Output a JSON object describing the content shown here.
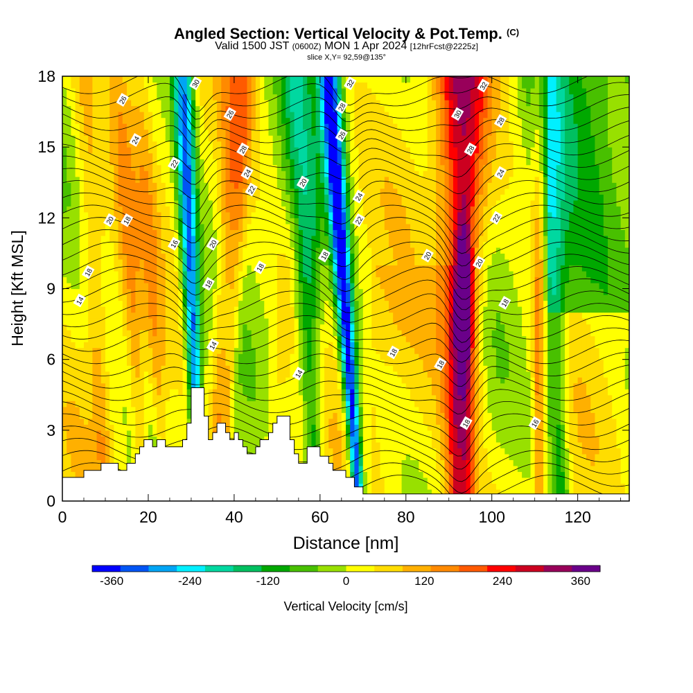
{
  "header": {
    "title_main": "Angled Section: Vertical Velocity & Pot.Temp.",
    "title_copyright": "(C)",
    "valid_a": "Valid 1500 JST",
    "valid_b": "(0600Z)",
    "valid_c": "MON 1 Apr 2024",
    "valid_d": "[12hrFcst@2225z]",
    "slice": "slice X,Y= 92,59@135°"
  },
  "chart_data": {
    "type": "heatmap",
    "title": "Angled Section: Vertical Velocity & Pot.Temp.",
    "xlabel": "Distance [nm]",
    "ylabel": "Height [Kft MSL]",
    "xlim": [
      0,
      132
    ],
    "ylim": [
      0,
      18
    ],
    "x_ticks": [
      0,
      20,
      40,
      60,
      80,
      100,
      120
    ],
    "y_ticks": [
      0,
      3,
      6,
      9,
      12,
      15,
      18
    ],
    "colorbar": {
      "label": "Vertical Velocity [cm/s]",
      "range": [
        -390,
        390
      ],
      "step": 60,
      "tick_values": [
        -360,
        -240,
        -120,
        0,
        120,
        240,
        360
      ],
      "colors": [
        "#0000ff",
        "#0055f5",
        "#00a5f5",
        "#00f0ff",
        "#00d8a0",
        "#00c060",
        "#00a800",
        "#48c000",
        "#98e000",
        "#ffff00",
        "#ffdd00",
        "#ffb000",
        "#ff8a00",
        "#ff5a00",
        "#ff0000",
        "#cc0020",
        "#98005a",
        "#6a008a"
      ]
    },
    "updraft_bands": [
      {
        "x_bottom": 10,
        "x_top": 5,
        "w": 1.6,
        "intensity": 0.16
      },
      {
        "x_bottom": 19,
        "x_top": 13,
        "w": 1.4,
        "intensity": 0.17
      },
      {
        "x_bottom": 24,
        "x_top": 18,
        "w": 1.3,
        "intensity": 0.14
      },
      {
        "x_bottom": 35,
        "x_top": 40,
        "w": 1.3,
        "intensity": 0.22
      },
      {
        "x_bottom": 37,
        "x_top": 43,
        "w": 1.2,
        "intensity": 0.21
      },
      {
        "x_bottom": 47,
        "x_top": 58,
        "w": 1.6,
        "intensity": 0.08
      },
      {
        "x_bottom": 93,
        "x_top": 93,
        "w": 3.0,
        "intensity": 0.55
      },
      {
        "x_bottom": 111,
        "x_top": 111,
        "w": 1.0,
        "intensity": 0.3
      }
    ],
    "downdraft_bands": [
      {
        "x_bottom": 32,
        "x_top": 28,
        "w": 1.2,
        "intensity": 0.7
      },
      {
        "x_bottom": 69,
        "x_top": 62,
        "w": 1.3,
        "intensity": 0.85
      },
      {
        "x_bottom": 59,
        "x_top": 55,
        "w": 2.0,
        "intensity": 0.35
      },
      {
        "x_bottom": 116,
        "x_top": 112,
        "w": 2.0,
        "intensity": 0.3
      }
    ],
    "theta_labels": [
      {
        "text": "26",
        "x": 14,
        "y": 17.0
      },
      {
        "text": "24",
        "x": 17,
        "y": 15.3
      },
      {
        "text": "22",
        "x": 26,
        "y": 14.3
      },
      {
        "text": "20",
        "x": 11,
        "y": 11.9
      },
      {
        "text": "18",
        "x": 15,
        "y": 11.9
      },
      {
        "text": "16",
        "x": 26,
        "y": 10.9
      },
      {
        "text": "18",
        "x": 6,
        "y": 9.7
      },
      {
        "text": "14",
        "x": 4,
        "y": 8.5
      },
      {
        "text": "30",
        "x": 31,
        "y": 17.7
      },
      {
        "text": "26",
        "x": 39,
        "y": 16.4
      },
      {
        "text": "28",
        "x": 42,
        "y": 14.9
      },
      {
        "text": "24",
        "x": 43,
        "y": 13.9
      },
      {
        "text": "22",
        "x": 44,
        "y": 13.2
      },
      {
        "text": "20",
        "x": 35,
        "y": 10.9
      },
      {
        "text": "18",
        "x": 34,
        "y": 9.2
      },
      {
        "text": "18",
        "x": 46,
        "y": 9.9
      },
      {
        "text": "14",
        "x": 35,
        "y": 6.6
      },
      {
        "text": "20",
        "x": 56,
        "y": 13.5
      },
      {
        "text": "32",
        "x": 67,
        "y": 17.7
      },
      {
        "text": "28",
        "x": 65,
        "y": 16.7
      },
      {
        "text": "26",
        "x": 65,
        "y": 15.5
      },
      {
        "text": "24",
        "x": 69,
        "y": 12.9
      },
      {
        "text": "22",
        "x": 69,
        "y": 11.9
      },
      {
        "text": "18",
        "x": 61,
        "y": 10.4
      },
      {
        "text": "14",
        "x": 55,
        "y": 5.4
      },
      {
        "text": "32",
        "x": 98,
        "y": 17.6
      },
      {
        "text": "30",
        "x": 92,
        "y": 16.4
      },
      {
        "text": "28",
        "x": 102,
        "y": 16.1
      },
      {
        "text": "28",
        "x": 95,
        "y": 14.9
      },
      {
        "text": "24",
        "x": 102,
        "y": 13.9
      },
      {
        "text": "22",
        "x": 101,
        "y": 12.0
      },
      {
        "text": "20",
        "x": 85,
        "y": 10.4
      },
      {
        "text": "20",
        "x": 97,
        "y": 10.1
      },
      {
        "text": "18",
        "x": 103,
        "y": 8.4
      },
      {
        "text": "18",
        "x": 77,
        "y": 6.3
      },
      {
        "text": "18",
        "x": 88,
        "y": 5.8
      },
      {
        "text": "18",
        "x": 94,
        "y": 3.3
      },
      {
        "text": "16",
        "x": 110,
        "y": 3.3
      }
    ],
    "terrain_profile": [
      [
        0,
        1.0
      ],
      [
        5,
        1.0
      ],
      [
        5,
        1.3
      ],
      [
        9,
        1.3
      ],
      [
        9,
        1.6
      ],
      [
        13,
        1.6
      ],
      [
        13,
        1.3
      ],
      [
        15,
        1.3
      ],
      [
        15,
        1.6
      ],
      [
        17,
        1.6
      ],
      [
        17,
        2.0
      ],
      [
        18,
        2.0
      ],
      [
        18,
        2.3
      ],
      [
        19,
        2.3
      ],
      [
        19,
        2.6
      ],
      [
        21,
        2.6
      ],
      [
        21,
        2.3
      ],
      [
        22,
        2.3
      ],
      [
        22,
        2.6
      ],
      [
        24,
        2.6
      ],
      [
        24,
        2.3
      ],
      [
        28,
        2.3
      ],
      [
        28,
        2.6
      ],
      [
        29,
        2.6
      ],
      [
        29,
        3.3
      ],
      [
        30,
        3.3
      ],
      [
        30,
        4.8
      ],
      [
        33,
        4.8
      ],
      [
        33,
        3.6
      ],
      [
        34,
        3.6
      ],
      [
        34,
        2.6
      ],
      [
        35,
        2.6
      ],
      [
        35,
        2.9
      ],
      [
        36,
        2.9
      ],
      [
        36,
        3.3
      ],
      [
        38,
        3.3
      ],
      [
        38,
        2.9
      ],
      [
        39,
        2.9
      ],
      [
        39,
        2.6
      ],
      [
        40,
        2.6
      ],
      [
        40,
        2.9
      ],
      [
        41,
        2.9
      ],
      [
        41,
        2.6
      ],
      [
        42,
        2.6
      ],
      [
        42,
        2.3
      ],
      [
        43,
        2.3
      ],
      [
        43,
        2.0
      ],
      [
        45,
        2.0
      ],
      [
        45,
        2.3
      ],
      [
        46,
        2.3
      ],
      [
        46,
        2.6
      ],
      [
        48,
        2.6
      ],
      [
        48,
        2.9
      ],
      [
        49,
        2.9
      ],
      [
        49,
        3.3
      ],
      [
        50,
        3.3
      ],
      [
        50,
        3.6
      ],
      [
        53,
        3.6
      ],
      [
        53,
        2.6
      ],
      [
        54,
        2.6
      ],
      [
        54,
        2.0
      ],
      [
        55,
        2.0
      ],
      [
        55,
        1.6
      ],
      [
        57,
        1.6
      ],
      [
        57,
        2.3
      ],
      [
        60,
        2.3
      ],
      [
        60,
        1.9
      ],
      [
        62,
        1.9
      ],
      [
        62,
        1.6
      ],
      [
        63,
        1.6
      ],
      [
        63,
        1.3
      ],
      [
        66,
        1.3
      ],
      [
        66,
        1.0
      ],
      [
        68,
        1.0
      ],
      [
        68,
        0.6
      ],
      [
        70,
        0.6
      ],
      [
        70,
        0.3
      ],
      [
        132,
        0.3
      ]
    ]
  }
}
